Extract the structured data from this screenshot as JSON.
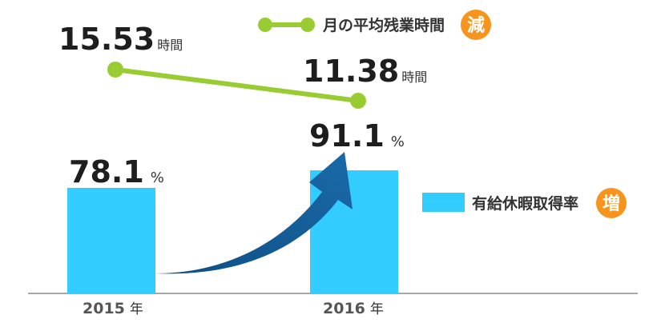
{
  "chart_data": {
    "type": "bar+line",
    "categories": [
      "2015",
      "2016"
    ],
    "year_unit": "年",
    "bars": {
      "name": "有給休暇取得率",
      "values": [
        78.1,
        91.1
      ],
      "unit": "%",
      "color": "#33ccff",
      "badge": "増"
    },
    "line": {
      "name": "月の平均残業時間",
      "values": [
        15.53,
        11.38
      ],
      "unit": "時間",
      "color": "#99cc33",
      "badge": "減"
    },
    "arrow_color": "#1a6aa8",
    "badge_color": "#f7941d"
  }
}
